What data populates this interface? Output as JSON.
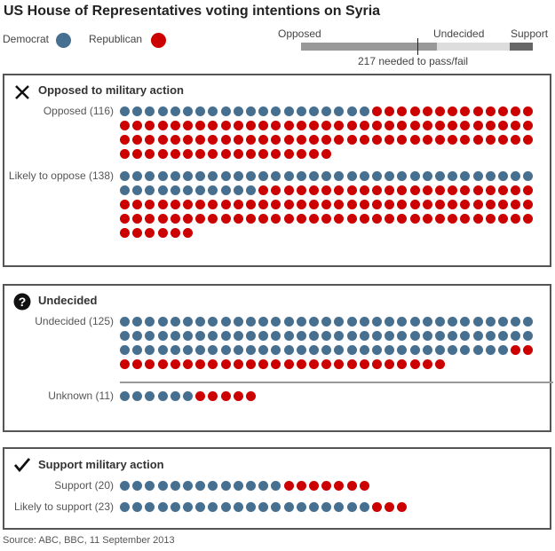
{
  "title": "US House of Representatives voting intentions on Syria",
  "legend": {
    "democrat": "Democrat",
    "republican": "Republican"
  },
  "colors": {
    "democrat": "#476f8f",
    "republican": "#cc0000",
    "opposed_bar": "#999999",
    "undecided_bar": "#dddddd",
    "support_bar": "#666666"
  },
  "summary_bar": {
    "opposed": "Opposed",
    "undecided": "Undecided",
    "support": "Support",
    "threshold_label": "217 needed to pass/fail",
    "threshold": 217,
    "totals": {
      "opposed": 254,
      "undecided": 136,
      "support": 43
    }
  },
  "chart_data": {
    "type": "dot-matrix",
    "dots_per_row": 33,
    "panels": [
      {
        "title": "Opposed to military action",
        "icon": "cross-icon",
        "groups": [
          {
            "label": "Opposed (116)",
            "democrat": 20,
            "republican": 96
          },
          {
            "label": "Likely to oppose (138)",
            "democrat": 44,
            "republican": 94
          }
        ]
      },
      {
        "title": "Undecided",
        "icon": "question-icon",
        "groups": [
          {
            "label": "Undecided (125)",
            "democrat": 97,
            "republican": 28
          },
          {
            "label": "Unknown (11)",
            "democrat": 6,
            "republican": 5
          }
        ]
      },
      {
        "title": "Support military action",
        "icon": "check-icon",
        "groups": [
          {
            "label": "Support (20)",
            "democrat": 13,
            "republican": 7
          },
          {
            "label": "Likely to support (23)",
            "democrat": 20,
            "republican": 3
          }
        ]
      }
    ]
  },
  "source": "Source: ABC, BBC, 11 September 2013"
}
